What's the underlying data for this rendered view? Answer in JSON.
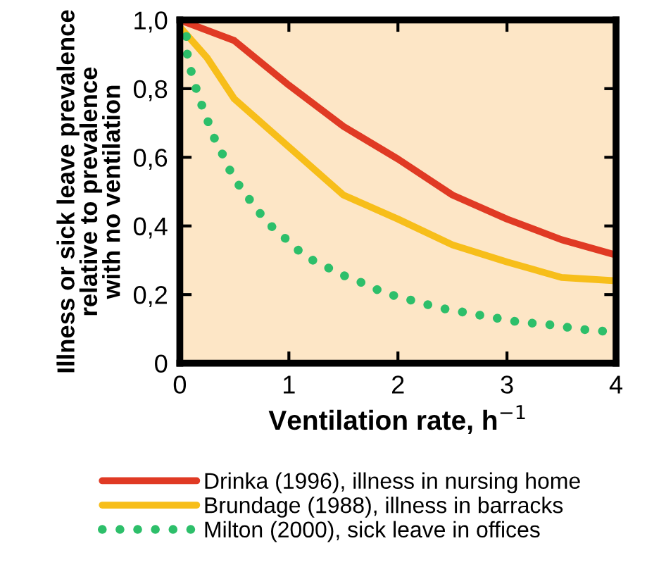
{
  "chart_data": {
    "type": "line",
    "xlabel": "Ventilation rate, h$^{−1}$",
    "ylabel": "Illness or sick leave prevalence\nrelative to prevalence\nwith no ventilation",
    "xlim": [
      0,
      4
    ],
    "ylim": [
      0,
      1
    ],
    "xticks": [
      0,
      1,
      2,
      3,
      4
    ],
    "yticks": [
      0,
      {
        "value": 0.2,
        "label": "0,2"
      },
      {
        "value": 0.4,
        "label": "0,4"
      },
      {
        "value": 0.6,
        "label": "0,6"
      },
      {
        "value": 0.8,
        "label": "0,8"
      },
      {
        "value": 1,
        "label": "1,0"
      }
    ],
    "grid": false,
    "legend": "bottom",
    "series": [
      {
        "name": "Drinka (1996), illness in nursing home",
        "color": "#e03a24",
        "line_style": "solid",
        "x": [
          0,
          0.5,
          1,
          1.5,
          2,
          2.5,
          3,
          3.5,
          4
        ],
        "values": [
          1.0,
          0.94,
          0.81,
          0.69,
          0.595,
          0.49,
          0.42,
          0.36,
          0.315
        ]
      },
      {
        "name": "Brundage (1988), illness in barracks",
        "color": "#f7be1a",
        "line_style": "solid",
        "x": [
          0,
          0.25,
          0.5,
          1,
          1.5,
          2,
          2.5,
          3,
          3.5,
          4
        ],
        "values": [
          0.98,
          0.89,
          0.77,
          0.63,
          0.49,
          0.42,
          0.345,
          0.295,
          0.25,
          0.24
        ]
      },
      {
        "name": "Milton (2000), sick leave in offices",
        "color": "#2dbf6a",
        "line_style": "dotted",
        "x": [
          0,
          0.06,
          0.07,
          0.12,
          0.18,
          0.24,
          0.31,
          0.39,
          0.47,
          0.56,
          0.68,
          0.8,
          0.93,
          1.06,
          1.22,
          1.38,
          1.54,
          1.71,
          1.87,
          2.05,
          2.22,
          2.4,
          2.58,
          2.75,
          2.93,
          3.11,
          3.29,
          3.46,
          3.64,
          3.82,
          4.0
        ],
        "values": [
          1.0,
          0.954,
          0.895,
          0.83,
          0.77,
          0.72,
          0.66,
          0.61,
          0.555,
          0.51,
          0.46,
          0.41,
          0.375,
          0.335,
          0.3,
          0.275,
          0.25,
          0.23,
          0.205,
          0.19,
          0.175,
          0.16,
          0.15,
          0.14,
          0.13,
          0.12,
          0.115,
          0.11,
          0.1,
          0.095,
          0.09
        ]
      }
    ]
  }
}
